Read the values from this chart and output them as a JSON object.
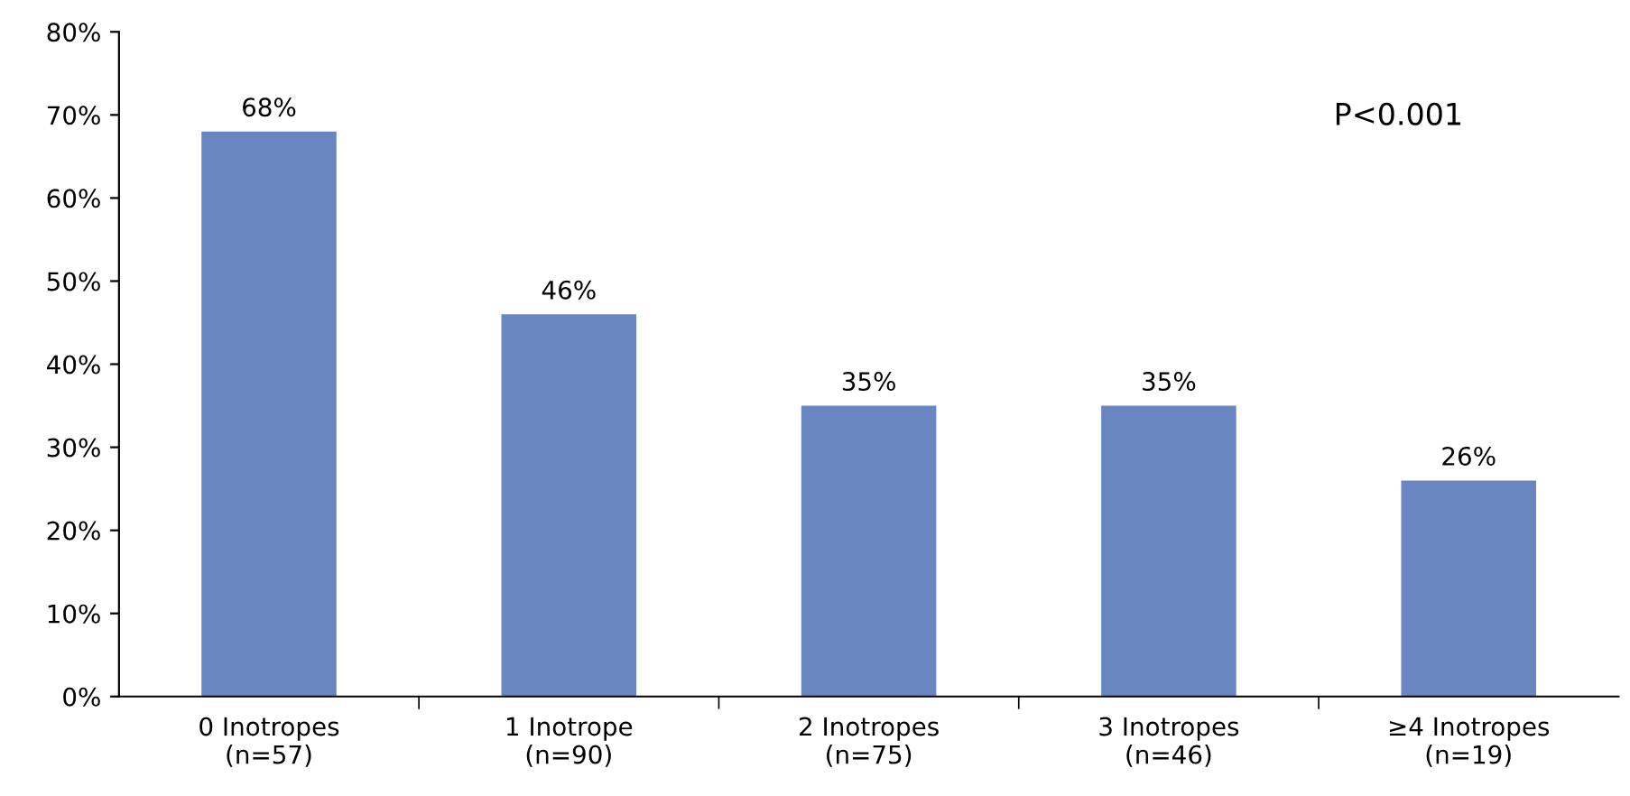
{
  "chart_data": {
    "type": "bar",
    "categories": [
      "0 Inotropes\n(n=57)",
      "1 Inotrope\n(n=90)",
      "2 Inotropes\n(n=75)",
      "3 Inotropes\n(n=46)",
      "≥4 Inotropes\n(n=19)"
    ],
    "values": [
      68,
      46,
      35,
      35,
      26
    ],
    "value_labels": [
      "68%",
      "46%",
      "35%",
      "35%",
      "26%"
    ],
    "color": "#6a86c0",
    "ylim": [
      0,
      80
    ],
    "yticks": [
      {
        "value": 0,
        "label": "0%"
      },
      {
        "value": 10,
        "label": "10%"
      },
      {
        "value": 20,
        "label": "20%"
      },
      {
        "value": 30,
        "label": "30%"
      },
      {
        "value": 40,
        "label": "40%"
      },
      {
        "value": 50,
        "label": "50%"
      },
      {
        "value": 60,
        "label": "60%"
      },
      {
        "value": 70,
        "label": "70%"
      },
      {
        "value": 80,
        "label": "80%"
      }
    ],
    "annotations": [
      "P<0.001"
    ],
    "grid": false,
    "legend": false
  }
}
